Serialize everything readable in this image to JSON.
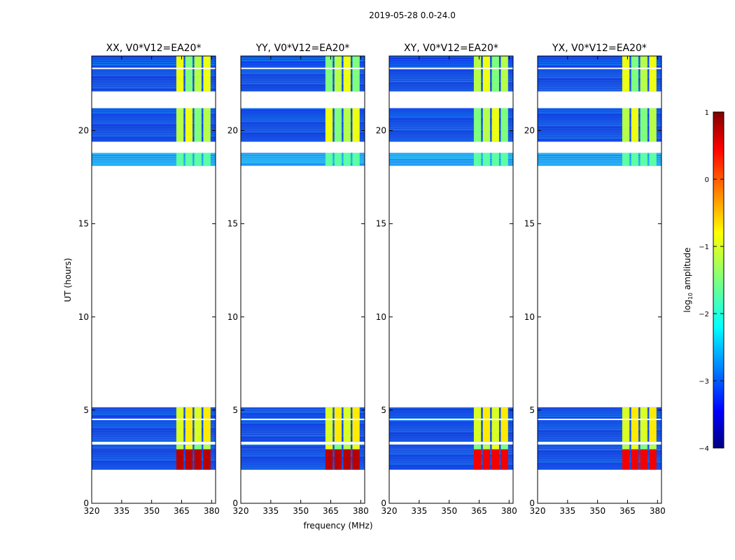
{
  "chart_data": {
    "type": "heatmap",
    "suptitle": "2019-05-28 0.0-24.0",
    "xlabel": "frequency (MHz)",
    "ylabel": "UT (hours)",
    "xlim": [
      320,
      382
    ],
    "ylim": [
      0,
      24
    ],
    "xticks": [
      320,
      335,
      350,
      365,
      380
    ],
    "yticks": [
      0,
      5,
      10,
      15,
      20
    ],
    "colorbar": {
      "label": "log10 amplitude",
      "label_main": "log",
      "label_sub": "10",
      "label_rest": " amplitude",
      "range": [
        -4,
        1
      ],
      "ticks": [
        1,
        0,
        -1,
        -2,
        -3,
        -4
      ]
    },
    "panels": [
      {
        "title": "XX, V0*V12=EA20*"
      },
      {
        "title": "YY, V0*V12=EA20*"
      },
      {
        "title": "XY, V0*V12=EA20*"
      },
      {
        "title": "YX, V0*V12=EA20*"
      }
    ],
    "data_blocks_ut_hours": [
      {
        "start": 1.8,
        "end": 2.9
      },
      {
        "start": 2.9,
        "end": 3.15
      },
      {
        "start": 3.3,
        "end": 5.15
      },
      {
        "start": 18.1,
        "end": 18.8
      },
      {
        "start": 19.4,
        "end": 21.2
      },
      {
        "start": 22.1,
        "end": 24.0
      }
    ],
    "rfi_band_mhz": [
      362,
      380
    ]
  }
}
